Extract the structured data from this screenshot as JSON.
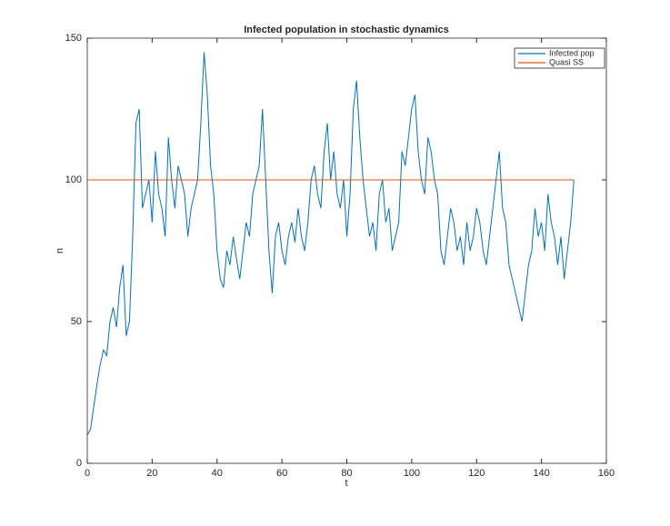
{
  "chart_data": {
    "type": "line",
    "title": "Infected population in stochastic dynamics",
    "xlabel": "t",
    "ylabel": "n",
    "series": [
      {
        "name": "Infected pop",
        "color": "#0072bd",
        "x": [
          0,
          1,
          2,
          3,
          4,
          5,
          6,
          7,
          8,
          9,
          10,
          11,
          12,
          13,
          14,
          15,
          16,
          17,
          18,
          19,
          20,
          21,
          22,
          23,
          24,
          25,
          26,
          27,
          28,
          29,
          30,
          31,
          32,
          33,
          34,
          35,
          36,
          37,
          38,
          39,
          40,
          41,
          42,
          43,
          44,
          45,
          46,
          47,
          48,
          49,
          50,
          51,
          52,
          53,
          54,
          55,
          56,
          57,
          58,
          59,
          60,
          61,
          62,
          63,
          64,
          65,
          66,
          67,
          68,
          69,
          70,
          71,
          72,
          73,
          74,
          75,
          76,
          77,
          78,
          79,
          80,
          81,
          82,
          83,
          84,
          85,
          86,
          87,
          88,
          89,
          90,
          91,
          92,
          93,
          94,
          95,
          96,
          97,
          98,
          99,
          100,
          101,
          102,
          103,
          104,
          105,
          106,
          107,
          108,
          109,
          110,
          111,
          112,
          113,
          114,
          115,
          116,
          117,
          118,
          119,
          120,
          121,
          122,
          123,
          124,
          125,
          126,
          127,
          128,
          129,
          130,
          131,
          132,
          133,
          134,
          135,
          136,
          137,
          138,
          139,
          140,
          141,
          142,
          143,
          144,
          145,
          146,
          147,
          148,
          149,
          150
        ],
        "values": [
          10,
          12,
          20,
          28,
          35,
          40,
          38,
          50,
          55,
          48,
          62,
          70,
          45,
          50,
          80,
          120,
          125,
          90,
          95,
          100,
          85,
          110,
          95,
          90,
          80,
          115,
          100,
          90,
          105,
          100,
          95,
          80,
          90,
          95,
          100,
          120,
          145,
          130,
          105,
          95,
          75,
          65,
          62,
          75,
          70,
          80,
          72,
          65,
          75,
          85,
          80,
          95,
          100,
          105,
          125,
          100,
          75,
          60,
          80,
          85,
          75,
          70,
          80,
          85,
          78,
          90,
          80,
          75,
          85,
          100,
          105,
          95,
          90,
          110,
          120,
          100,
          110,
          95,
          90,
          100,
          80,
          95,
          125,
          135,
          115,
          100,
          90,
          80,
          85,
          75,
          95,
          100,
          85,
          90,
          75,
          80,
          85,
          110,
          105,
          115,
          125,
          130,
          110,
          100,
          95,
          115,
          110,
          100,
          95,
          75,
          70,
          80,
          90,
          85,
          75,
          80,
          70,
          85,
          75,
          80,
          90,
          85,
          75,
          70,
          80,
          90,
          100,
          110,
          90,
          85,
          70,
          65,
          60,
          55,
          50,
          60,
          70,
          75,
          90,
          80,
          85,
          75,
          95,
          85,
          80,
          70,
          80,
          65,
          75,
          85,
          100
        ]
      },
      {
        "name": "Quasi SS",
        "color": "#d95319",
        "x": [
          0,
          150
        ],
        "values": [
          100,
          100
        ]
      }
    ],
    "xlim": [
      0,
      160
    ],
    "xticks": [
      0,
      20,
      40,
      60,
      80,
      100,
      120,
      140,
      160
    ],
    "ylim": [
      0,
      150
    ],
    "yticks": [
      0,
      50,
      100,
      150
    ],
    "legend": "upper right"
  }
}
